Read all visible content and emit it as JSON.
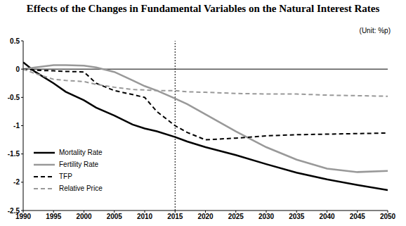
{
  "chart_data": {
    "type": "line",
    "title": "Effects of the Changes in Fundamental Variables on the Natural Interest Rates",
    "subtitle": "(Unit: %p)",
    "x": [
      1990,
      1992,
      1995,
      1997,
      2000,
      2002,
      2005,
      2008,
      2010,
      2012,
      2015,
      2017,
      2020,
      2025,
      2030,
      2035,
      2040,
      2045,
      2050
    ],
    "series": [
      {
        "name": "Mortality Rate",
        "color": "#000000",
        "line_style": "solid",
        "values": [
          0.12,
          -0.05,
          -0.25,
          -0.4,
          -0.55,
          -0.68,
          -0.82,
          -0.98,
          -1.05,
          -1.1,
          -1.2,
          -1.28,
          -1.38,
          -1.52,
          -1.68,
          -1.83,
          -1.95,
          -2.05,
          -2.14
        ]
      },
      {
        "name": "Fertility Rate",
        "color": "#999999",
        "line_style": "solid",
        "values": [
          0,
          0.03,
          0.07,
          0.07,
          0.06,
          0.03,
          -0.05,
          -0.2,
          -0.3,
          -0.38,
          -0.52,
          -0.62,
          -0.8,
          -1.1,
          -1.38,
          -1.6,
          -1.76,
          -1.82,
          -1.8
        ]
      },
      {
        "name": "TFP",
        "color": "#000000",
        "line_style": "dashed",
        "values": [
          0,
          -0.02,
          -0.03,
          -0.04,
          -0.05,
          -0.25,
          -0.38,
          -0.45,
          -0.5,
          -0.75,
          -1.0,
          -1.12,
          -1.25,
          -1.22,
          -1.18,
          -1.16,
          -1.15,
          -1.14,
          -1.13
        ]
      },
      {
        "name": "Relative Price",
        "color": "#999999",
        "line_style": "dashed",
        "values": [
          0,
          -0.08,
          -0.18,
          -0.2,
          -0.22,
          -0.27,
          -0.32,
          -0.36,
          -0.37,
          -0.38,
          -0.38,
          -0.4,
          -0.41,
          -0.43,
          -0.44,
          -0.44,
          -0.46,
          -0.47,
          -0.48
        ]
      }
    ],
    "xlim": [
      1990,
      2050
    ],
    "xticks": [
      1990,
      1995,
      2000,
      2005,
      2010,
      2015,
      2020,
      2025,
      2030,
      2035,
      2040,
      2045,
      2050
    ],
    "ylim": [
      -2.5,
      0.5
    ],
    "yticks": [
      -2.5,
      -2,
      -1.5,
      -1,
      -0.5,
      0,
      0.5
    ],
    "vline": 2015,
    "hline": 0,
    "grid": false,
    "legend": "lower left"
  }
}
